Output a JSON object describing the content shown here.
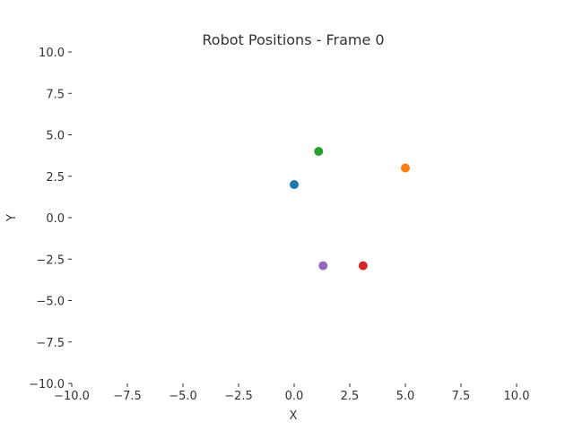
{
  "chart_data": {
    "type": "scatter",
    "title": "Robot Positions - Frame 0",
    "xlabel": "X",
    "ylabel": "Y",
    "xlim": [
      -10,
      10
    ],
    "ylim": [
      -10,
      10
    ],
    "xticks": [
      -10.0,
      -7.5,
      -5.0,
      -2.5,
      0.0,
      2.5,
      5.0,
      7.5,
      10.0
    ],
    "yticks": [
      -10.0,
      -7.5,
      -5.0,
      -2.5,
      0.0,
      2.5,
      5.0,
      7.5,
      10.0
    ],
    "xtick_labels": [
      "−10.0",
      "−7.5",
      "−5.0",
      "−2.5",
      "0.0",
      "2.5",
      "5.0",
      "7.5",
      "10.0"
    ],
    "ytick_labels": [
      "−10.0",
      "−7.5",
      "−5.0",
      "−2.5",
      "0.0",
      "2.5",
      "5.0",
      "7.5",
      "10.0"
    ],
    "grid": false,
    "points": [
      {
        "x": 0.0,
        "y": 2.0,
        "color": "#1f77b4"
      },
      {
        "x": 5.0,
        "y": 3.0,
        "color": "#ff7f0e"
      },
      {
        "x": 1.1,
        "y": 4.0,
        "color": "#2ca02c"
      },
      {
        "x": 3.1,
        "y": -2.9,
        "color": "#d62728"
      },
      {
        "x": 1.3,
        "y": -2.9,
        "color": "#9467bd"
      }
    ]
  }
}
